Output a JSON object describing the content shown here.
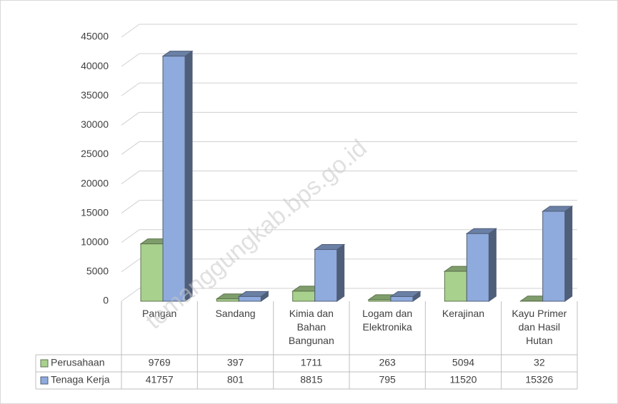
{
  "chart_data": {
    "type": "bar3d",
    "categories": [
      "Pangan",
      "Sandang",
      "Kimia dan Bahan Bangunan",
      "Logam dan Elektronika",
      "Kerajinan",
      "Kayu Primer dan Hasil Hutan"
    ],
    "series": [
      {
        "name": "Perusahaan",
        "color": "#a9d18e",
        "values": [
          9769,
          397,
          1711,
          263,
          5094,
          32
        ]
      },
      {
        "name": "Tenaga Kerja",
        "color": "#8faadc",
        "values": [
          41757,
          801,
          8815,
          795,
          11520,
          15326
        ]
      }
    ],
    "ylim": [
      0,
      45000
    ],
    "yticks": [
      0,
      5000,
      10000,
      15000,
      20000,
      25000,
      30000,
      35000,
      40000,
      45000
    ],
    "grid": true,
    "watermark": "temanggungkab.bps.go.id"
  }
}
